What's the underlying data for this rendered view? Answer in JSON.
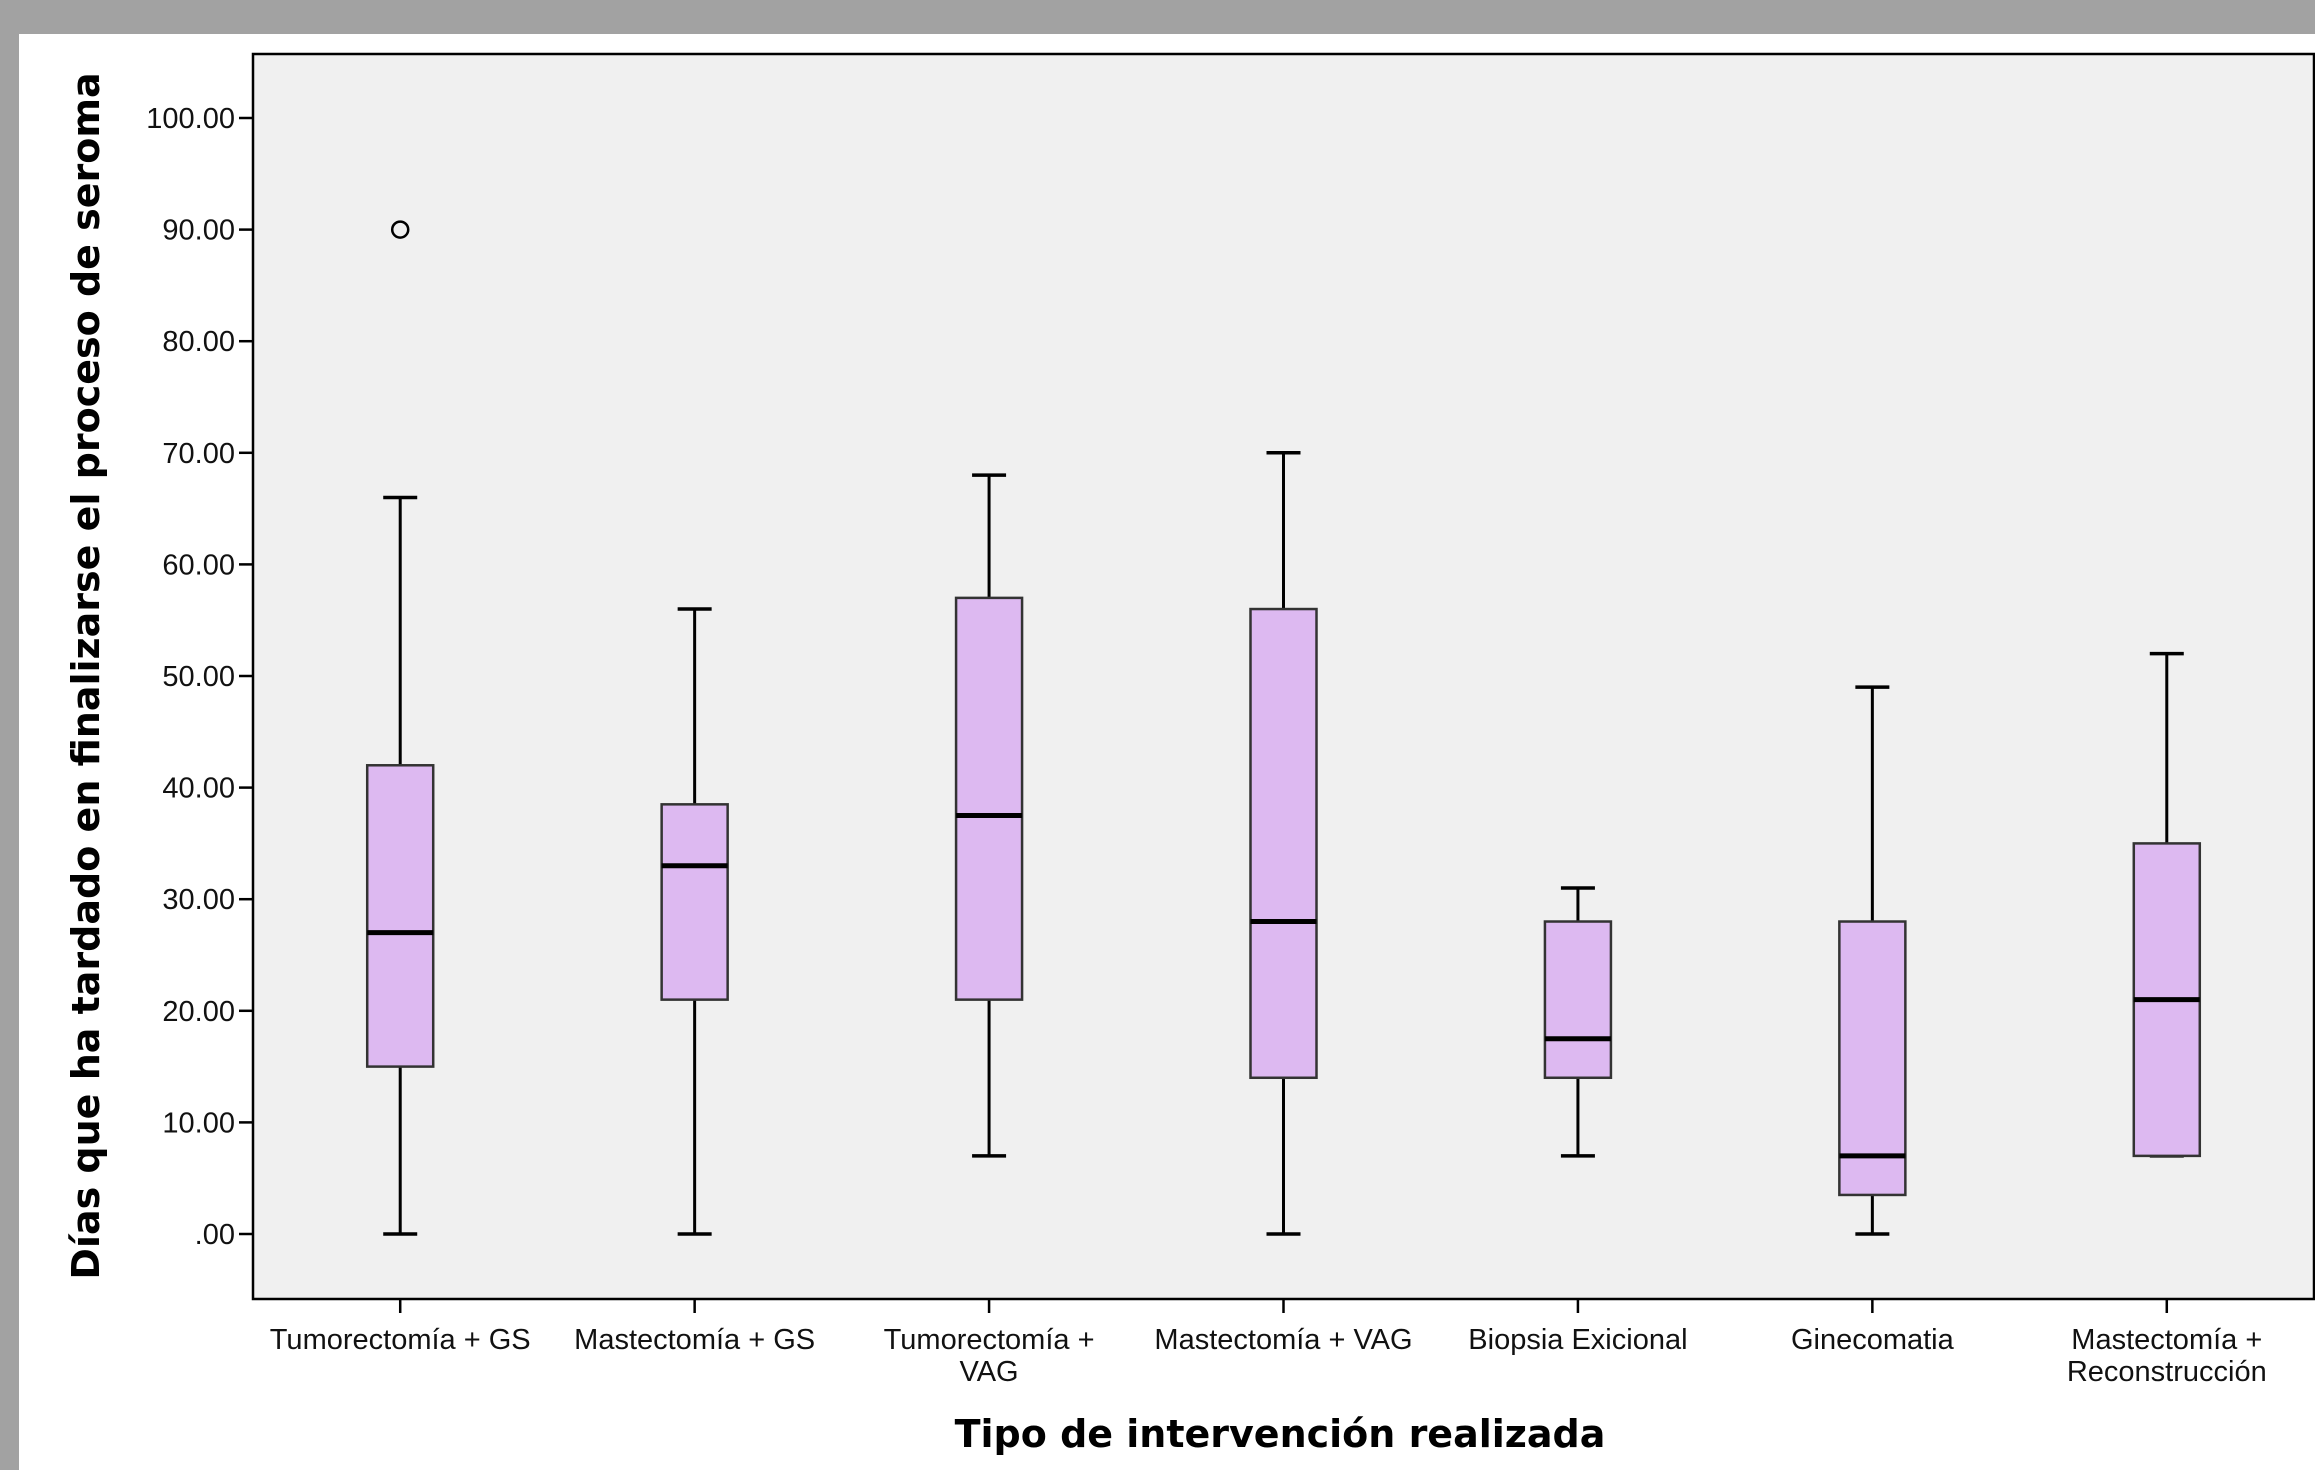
{
  "chart_data": {
    "type": "boxplot",
    "xlabel": "Tipo de intervención realizada",
    "ylabel": "Días que ha tardado en finalizarse el proceso de seroma",
    "ylim": [
      -6,
      105
    ],
    "yticks": [
      0,
      10,
      20,
      30,
      40,
      50,
      60,
      70,
      80,
      90,
      100
    ],
    "ytick_labels": [
      ".00",
      "10.00",
      "20.00",
      "30.00",
      "40.00",
      "50.00",
      "60.00",
      "70.00",
      "80.00",
      "90.00",
      "100.00"
    ],
    "grid": false,
    "legend": "none",
    "colors": {
      "plot_background": "#f0f0f0",
      "box_fill": "#ddb9f1",
      "box_stroke": "#333333",
      "whisker": "#000000",
      "median": "#000000",
      "outlier": "#000000",
      "frame": "#a2a2a2"
    },
    "categories": [
      {
        "label_lines": [
          "Tumorectomía + GS"
        ],
        "min": 0,
        "q1": 15,
        "median": 27,
        "q3": 42,
        "max": 66,
        "outliers": [
          90
        ]
      },
      {
        "label_lines": [
          "Mastectomía + GS"
        ],
        "min": 0,
        "q1": 21,
        "median": 33,
        "q3": 38.5,
        "max": 56,
        "outliers": []
      },
      {
        "label_lines": [
          "Tumorectomía +",
          "VAG"
        ],
        "min": 7,
        "q1": 21,
        "median": 37.5,
        "q3": 57,
        "max": 68,
        "outliers": []
      },
      {
        "label_lines": [
          "Mastectomía + VAG"
        ],
        "min": 0,
        "q1": 14,
        "median": 28,
        "q3": 56,
        "max": 70,
        "outliers": []
      },
      {
        "label_lines": [
          "Biopsia Exicional"
        ],
        "min": 7,
        "q1": 14,
        "median": 17.5,
        "q3": 28,
        "max": 31,
        "outliers": []
      },
      {
        "label_lines": [
          "Ginecomatia"
        ],
        "min": 0,
        "q1": 3.5,
        "median": 7,
        "q3": 28,
        "max": 49,
        "outliers": []
      },
      {
        "label_lines": [
          "Mastectomía +",
          "Reconstrucción"
        ],
        "min": 7,
        "q1": 7,
        "median": 21,
        "q3": 35,
        "max": 52,
        "outliers": []
      }
    ]
  }
}
